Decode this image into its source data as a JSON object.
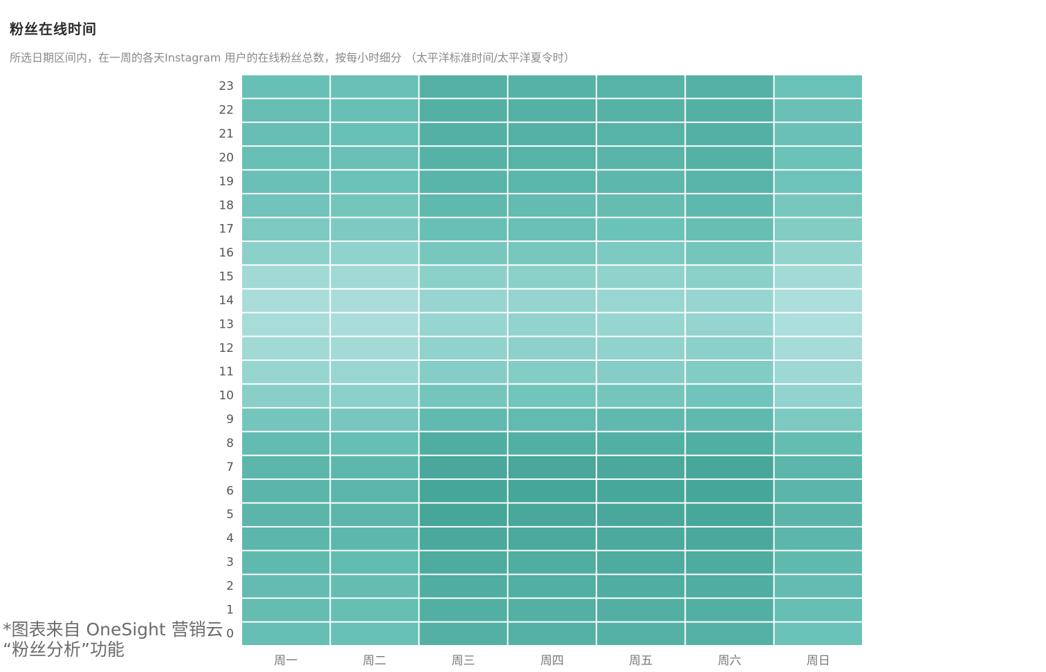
{
  "chart_data": {
    "type": "heatmap",
    "title": "粉丝在线时间",
    "subtitle": "所选日期区间内，在一周的各天Instagram 用户的在线粉丝总数，按每小时细分 （太平洋标准时间/太平洋夏令时）",
    "x_categories": [
      "周一",
      "周二",
      "周三",
      "周四",
      "周五",
      "周六",
      "周日"
    ],
    "y_categories": [
      "0",
      "1",
      "2",
      "3",
      "4",
      "5",
      "6",
      "7",
      "8",
      "9",
      "10",
      "11",
      "12",
      "13",
      "14",
      "15",
      "16",
      "17",
      "18",
      "19",
      "20",
      "21",
      "22",
      "23"
    ],
    "values": [
      [
        0.58,
        0.55,
        0.8,
        0.78,
        0.79,
        0.79,
        0.52
      ],
      [
        0.6,
        0.57,
        0.82,
        0.8,
        0.81,
        0.82,
        0.58
      ],
      [
        0.62,
        0.6,
        0.84,
        0.82,
        0.84,
        0.84,
        0.62
      ],
      [
        0.66,
        0.63,
        0.88,
        0.85,
        0.87,
        0.88,
        0.66
      ],
      [
        0.7,
        0.68,
        0.92,
        0.9,
        0.91,
        0.92,
        0.7
      ],
      [
        0.72,
        0.7,
        0.95,
        0.93,
        0.93,
        0.94,
        0.73
      ],
      [
        0.72,
        0.7,
        0.95,
        0.95,
        0.94,
        0.95,
        0.72
      ],
      [
        0.7,
        0.68,
        0.93,
        0.93,
        0.92,
        0.94,
        0.7
      ],
      [
        0.62,
        0.58,
        0.84,
        0.82,
        0.82,
        0.83,
        0.6
      ],
      [
        0.46,
        0.44,
        0.64,
        0.63,
        0.65,
        0.66,
        0.42
      ],
      [
        0.34,
        0.33,
        0.46,
        0.47,
        0.46,
        0.48,
        0.28
      ],
      [
        0.26,
        0.25,
        0.36,
        0.37,
        0.36,
        0.38,
        0.22
      ],
      [
        0.2,
        0.19,
        0.3,
        0.31,
        0.3,
        0.32,
        0.17
      ],
      [
        0.16,
        0.15,
        0.26,
        0.28,
        0.26,
        0.27,
        0.14
      ],
      [
        0.15,
        0.15,
        0.26,
        0.27,
        0.25,
        0.26,
        0.14
      ],
      [
        0.2,
        0.2,
        0.32,
        0.33,
        0.3,
        0.33,
        0.19
      ],
      [
        0.32,
        0.3,
        0.44,
        0.45,
        0.42,
        0.46,
        0.28
      ],
      [
        0.42,
        0.4,
        0.56,
        0.54,
        0.52,
        0.57,
        0.38
      ],
      [
        0.48,
        0.46,
        0.66,
        0.62,
        0.6,
        0.67,
        0.44
      ],
      [
        0.54,
        0.52,
        0.74,
        0.71,
        0.68,
        0.74,
        0.5
      ],
      [
        0.56,
        0.54,
        0.77,
        0.76,
        0.73,
        0.78,
        0.52
      ],
      [
        0.58,
        0.55,
        0.8,
        0.78,
        0.76,
        0.8,
        0.54
      ],
      [
        0.58,
        0.56,
        0.8,
        0.79,
        0.77,
        0.8,
        0.54
      ],
      [
        0.56,
        0.54,
        0.78,
        0.77,
        0.76,
        0.78,
        0.52
      ]
    ],
    "color_scale": [
      "#c4e8e8",
      "#6dc3b9",
      "#43a397"
    ],
    "grid": true,
    "legend": "none"
  },
  "watermark": {
    "line1": "*图表来自 OneSight 营销云",
    "line2": "“粉丝分析”功能"
  }
}
